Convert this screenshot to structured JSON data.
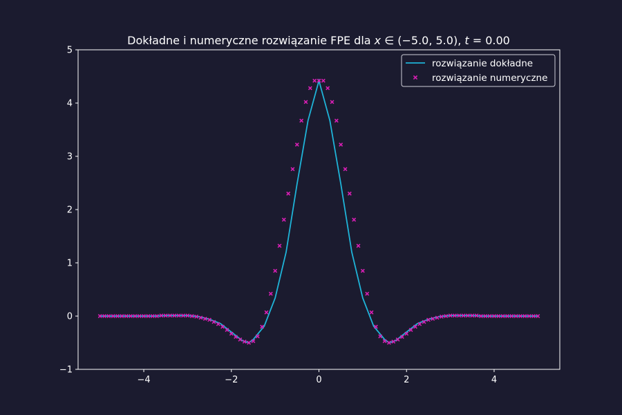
{
  "chart_data": {
    "type": "line",
    "title": {
      "prefix": "Dokładne i numeryczne rozwiązanie FPE dla ",
      "math_x": "x",
      "math_in": " ∈ (−5.0, 5.0), ",
      "math_t": "t",
      "math_eq": " = 0.00"
    },
    "xlabel": "",
    "ylabel": "",
    "xlim": [
      -5.5,
      5.5
    ],
    "ylim": [
      -1,
      5
    ],
    "xticks": [
      {
        "value": -4,
        "label": "−4"
      },
      {
        "value": -2,
        "label": "−2"
      },
      {
        "value": 0,
        "label": "0"
      },
      {
        "value": 2,
        "label": "2"
      },
      {
        "value": 4,
        "label": "4"
      }
    ],
    "yticks": [
      {
        "value": -1,
        "label": "−1"
      },
      {
        "value": 0,
        "label": "0"
      },
      {
        "value": 1,
        "label": "1"
      },
      {
        "value": 2,
        "label": "2"
      },
      {
        "value": 3,
        "label": "3"
      },
      {
        "value": 4,
        "label": "4"
      },
      {
        "value": 5,
        "label": "5"
      }
    ],
    "grid": false,
    "legend": {
      "placement": "top-right",
      "entries": [
        {
          "label": "rozwiązanie dokładne",
          "marker": "line",
          "color": "#1fb4d8"
        },
        {
          "label": "rozwiązanie numeryczne",
          "marker": "x",
          "color": "#d81fb4"
        }
      ]
    },
    "series": [
      {
        "name": "rozwiązanie dokładne",
        "style": "line",
        "color": "#1fb4d8",
        "x": [
          -5.0,
          -4.75,
          -4.5,
          -4.25,
          -4.0,
          -3.75,
          -3.5,
          -3.25,
          -3.0,
          -2.75,
          -2.5,
          -2.25,
          -2.0,
          -1.75,
          -1.6,
          -1.5,
          -1.25,
          -1.0,
          -0.75,
          -0.5,
          -0.25,
          0.0,
          0.25,
          0.5,
          0.75,
          1.0,
          1.25,
          1.5,
          1.6,
          1.75,
          2.0,
          2.25,
          2.5,
          2.75,
          3.0,
          3.25,
          3.5,
          3.75,
          4.0,
          4.25,
          4.5,
          4.75,
          5.0
        ],
        "y": [
          0.0,
          0.0,
          0.0,
          0.0,
          0.0,
          0.0,
          0.01,
          0.01,
          0.01,
          -0.01,
          -0.06,
          -0.14,
          -0.3,
          -0.46,
          -0.5,
          -0.44,
          -0.19,
          0.34,
          1.2,
          2.48,
          3.67,
          4.42,
          3.67,
          2.48,
          1.2,
          0.34,
          -0.19,
          -0.44,
          -0.5,
          -0.46,
          -0.3,
          -0.14,
          -0.06,
          -0.01,
          0.01,
          0.01,
          0.01,
          0.0,
          0.0,
          0.0,
          0.0,
          0.0,
          0.0
        ]
      },
      {
        "name": "rozwiązanie numeryczne",
        "style": "x",
        "color": "#d81fb4",
        "x": [
          -5.0,
          -4.9,
          -4.8,
          -4.7,
          -4.6,
          -4.5,
          -4.4,
          -4.3,
          -4.2,
          -4.1,
          -4.0,
          -3.9,
          -3.8,
          -3.7,
          -3.6,
          -3.5,
          -3.4,
          -3.3,
          -3.2,
          -3.1,
          -3.0,
          -2.9,
          -2.8,
          -2.7,
          -2.6,
          -2.5,
          -2.4,
          -2.3,
          -2.2,
          -2.1,
          -2.0,
          -1.9,
          -1.8,
          -1.7,
          -1.6,
          -1.5,
          -1.4,
          -1.3,
          -1.2,
          -1.1,
          -1.0,
          -0.9,
          -0.8,
          -0.7,
          -0.6,
          -0.5,
          -0.4,
          -0.3,
          -0.2,
          -0.1,
          0.0,
          0.1,
          0.2,
          0.3,
          0.4,
          0.5,
          0.6,
          0.7,
          0.8,
          0.9,
          1.0,
          1.1,
          1.2,
          1.3,
          1.4,
          1.5,
          1.6,
          1.7,
          1.8,
          1.9,
          2.0,
          2.1,
          2.2,
          2.3,
          2.4,
          2.5,
          2.6,
          2.7,
          2.8,
          2.9,
          3.0,
          3.1,
          3.2,
          3.3,
          3.4,
          3.5,
          3.6,
          3.7,
          3.8,
          3.9,
          4.0,
          4.1,
          4.2,
          4.3,
          4.4,
          4.5,
          4.6,
          4.7,
          4.8,
          4.9,
          5.0
        ],
        "y": [
          0.0,
          0.0,
          0.0,
          0.0,
          0.0,
          0.0,
          0.0,
          0.0,
          0.0,
          0.0,
          0.0,
          0.0,
          0.0,
          0.0,
          0.01,
          0.01,
          0.01,
          0.01,
          0.01,
          0.01,
          0.01,
          0.0,
          -0.01,
          -0.03,
          -0.05,
          -0.07,
          -0.11,
          -0.15,
          -0.2,
          -0.26,
          -0.33,
          -0.39,
          -0.44,
          -0.48,
          -0.5,
          -0.47,
          -0.38,
          -0.2,
          0.07,
          0.42,
          0.85,
          1.32,
          1.81,
          2.3,
          2.76,
          3.22,
          3.67,
          4.02,
          4.28,
          4.42,
          4.42,
          4.42,
          4.28,
          4.02,
          3.67,
          3.22,
          2.76,
          2.3,
          1.81,
          1.32,
          0.85,
          0.42,
          0.07,
          -0.2,
          -0.38,
          -0.47,
          -0.5,
          -0.48,
          -0.44,
          -0.39,
          -0.33,
          -0.26,
          -0.2,
          -0.15,
          -0.11,
          -0.07,
          -0.05,
          -0.03,
          -0.01,
          0.0,
          0.01,
          0.01,
          0.01,
          0.01,
          0.01,
          0.01,
          0.01,
          0.0,
          0.0,
          0.0,
          0.0,
          0.0,
          0.0,
          0.0,
          0.0,
          0.0,
          0.0,
          0.0,
          0.0,
          0.0,
          0.0
        ]
      }
    ]
  }
}
